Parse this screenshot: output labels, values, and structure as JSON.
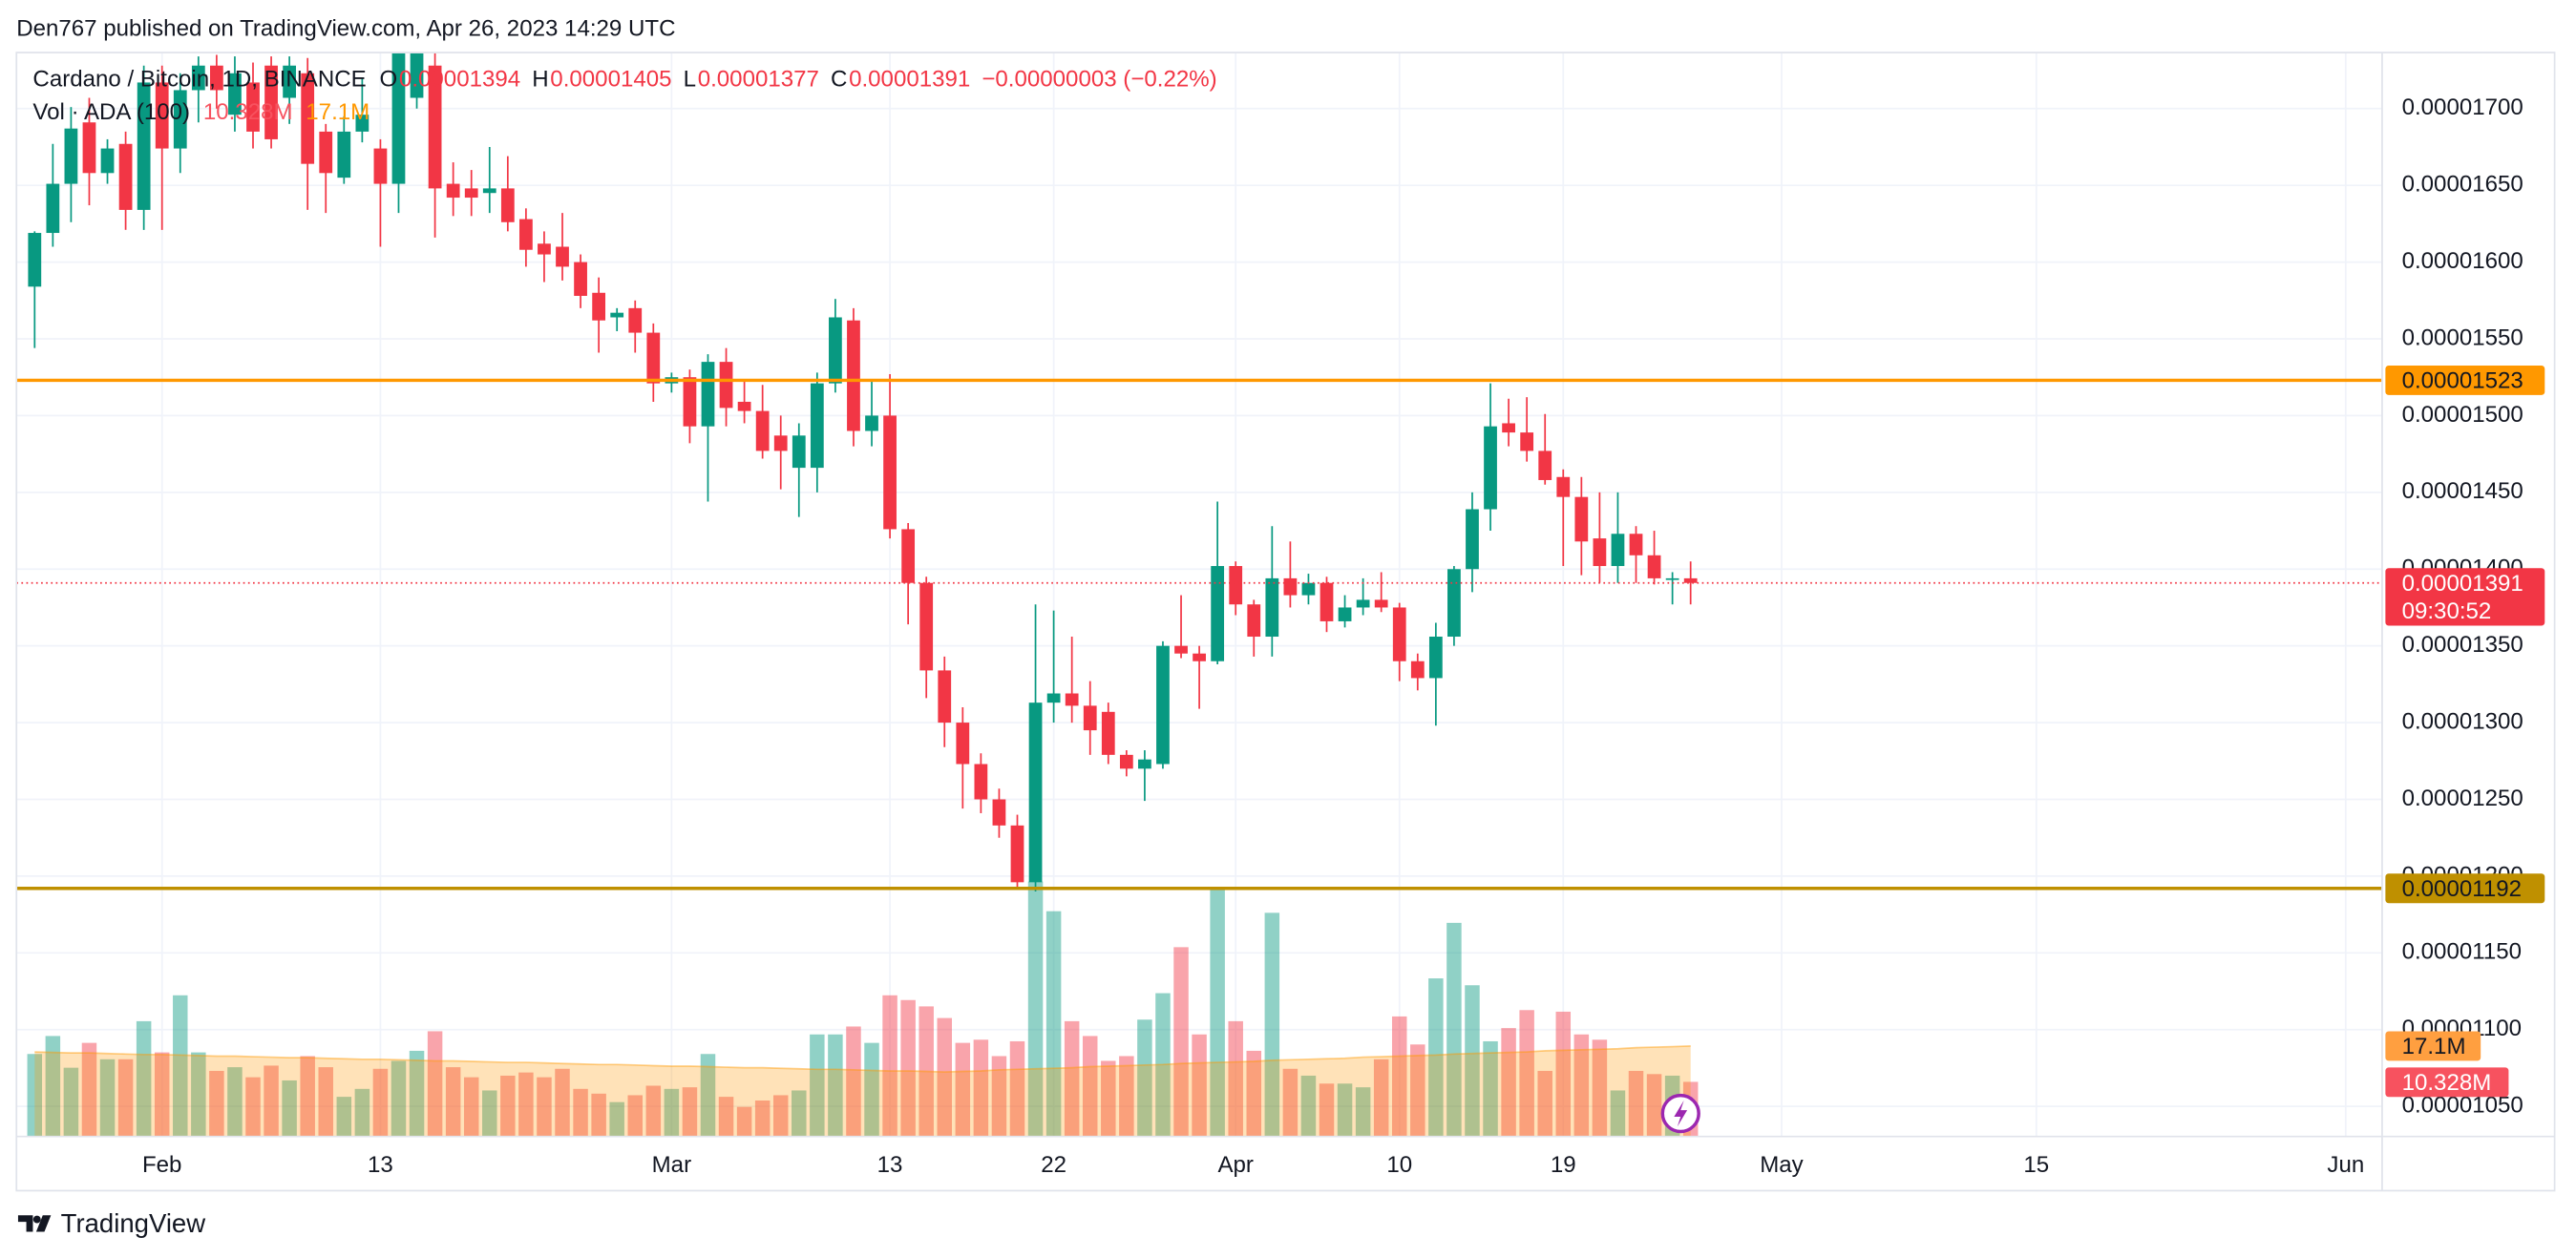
{
  "header": "Den767 published on TradingView.com, Apr 26, 2023 14:29 UTC",
  "footer": "TradingView",
  "chart_data": {
    "type": "candlestick",
    "title": "Cardano / Bitcoin, 1D, BINANCE",
    "ohlc_letters": [
      "O",
      "H",
      "L",
      "C"
    ],
    "change_label": "−0.00000003 (−0.22%)",
    "volume_title": "Vol · ADA (100)",
    "last_volume_label": "10.328M",
    "last_ma_label": "17.1M",
    "countdown": "09:30:52",
    "up_color": "#089981",
    "down_color": "#f23645",
    "grid": true,
    "x": [
      "01-25",
      "01-26",
      "01-27",
      "01-28",
      "01-29",
      "01-30",
      "01-31",
      "02-01",
      "02-02",
      "02-03",
      "02-04",
      "02-05",
      "02-06",
      "02-07",
      "02-08",
      "02-09",
      "02-10",
      "02-11",
      "02-12",
      "02-13",
      "02-14",
      "02-15",
      "02-16",
      "02-17",
      "02-18",
      "02-19",
      "02-20",
      "02-21",
      "02-22",
      "02-23",
      "02-24",
      "02-25",
      "02-26",
      "02-27",
      "02-28",
      "03-01",
      "03-02",
      "03-03",
      "03-04",
      "03-05",
      "03-06",
      "03-07",
      "03-08",
      "03-09",
      "03-10",
      "03-11",
      "03-12",
      "03-13",
      "03-14",
      "03-15",
      "03-16",
      "03-17",
      "03-18",
      "03-19",
      "03-20",
      "03-21",
      "03-22",
      "03-23",
      "03-24",
      "03-25",
      "03-26",
      "03-27",
      "03-28",
      "03-29",
      "03-30",
      "03-31",
      "04-01",
      "04-02",
      "04-03",
      "04-04",
      "04-05",
      "04-06",
      "04-07",
      "04-08",
      "04-09",
      "04-10",
      "04-11",
      "04-12",
      "04-13",
      "04-14",
      "04-15",
      "04-16",
      "04-17",
      "04-18",
      "04-19",
      "04-20",
      "04-21",
      "04-22",
      "04-23",
      "04-24",
      "04-25",
      "04-26"
    ],
    "open": [
      1.584e-05,
      1.619e-05,
      1.651e-05,
      1.691e-05,
      1.658e-05,
      1.677e-05,
      1.634e-05,
      1.717e-05,
      1.674e-05,
      1.712e-05,
      1.728e-05,
      1.696e-05,
      1.717e-05,
      1.728e-05,
      1.707e-05,
      1.723e-05,
      1.685e-05,
      1.655e-05,
      1.685e-05,
      1.674e-05,
      1.651e-05,
      1.707e-05,
      1.728e-05,
      1.651e-05,
      1.648e-05,
      1.645e-05,
      1.648e-05,
      1.628e-05,
      1.612e-05,
      1.61e-05,
      1.6e-05,
      1.58e-05,
      1.564e-05,
      1.57e-05,
      1.554e-05,
      1.521e-05,
      1.525e-05,
      1.493e-05,
      1.535e-05,
      1.509e-05,
      1.503e-05,
      1.487e-05,
      1.466e-05,
      1.466e-05,
      1.521e-05,
      1.562e-05,
      1.49e-05,
      1.5e-05,
      1.426e-05,
      1.391e-05,
      1.334e-05,
      1.3e-05,
      1.273e-05,
      1.25e-05,
      1.233e-05,
      1.196e-05,
      1.313e-05,
      1.319e-05,
      1.311e-05,
      1.307e-05,
      1.279e-05,
      1.27e-05,
      1.273e-05,
      1.35e-05,
      1.345e-05,
      1.34e-05,
      1.402e-05,
      1.377e-05,
      1.356e-05,
      1.394e-05,
      1.383e-05,
      1.391e-05,
      1.366e-05,
      1.375e-05,
      1.38e-05,
      1.375e-05,
      1.34e-05,
      1.329e-05,
      1.356e-05,
      1.4e-05,
      1.439e-05,
      1.495e-05,
      1.489e-05,
      1.477e-05,
      1.46e-05,
      1.447e-05,
      1.42e-05,
      1.402e-05,
      1.423e-05,
      1.409e-05,
      1.393e-05,
      1.394e-05
    ],
    "high": [
      1.62e-05,
      1.677e-05,
      1.701e-05,
      1.707e-05,
      1.68e-05,
      1.685e-05,
      1.728e-05,
      1.728e-05,
      1.723e-05,
      1.734e-05,
      1.735e-05,
      1.734e-05,
      1.73e-05,
      1.734e-05,
      1.734e-05,
      1.733e-05,
      1.69e-05,
      1.695e-05,
      1.72e-05,
      1.68e-05,
      1.736e-05,
      1.736e-05,
      1.736e-05,
      1.665e-05,
      1.66e-05,
      1.675e-05,
      1.669e-05,
      1.635e-05,
      1.62e-05,
      1.632e-05,
      1.605e-05,
      1.59e-05,
      1.57e-05,
      1.575e-05,
      1.56e-05,
      1.528e-05,
      1.53e-05,
      1.54e-05,
      1.544e-05,
      1.523e-05,
      1.52e-05,
      1.5e-05,
      1.495e-05,
      1.528e-05,
      1.576e-05,
      1.57e-05,
      1.523e-05,
      1.527e-05,
      1.43e-05,
      1.395e-05,
      1.343e-05,
      1.31e-05,
      1.28e-05,
      1.257e-05,
      1.24e-05,
      1.377e-05,
      1.373e-05,
      1.356e-05,
      1.327e-05,
      1.313e-05,
      1.282e-05,
      1.282e-05,
      1.353e-05,
      1.383e-05,
      1.35e-05,
      1.444e-05,
      1.405e-05,
      1.38e-05,
      1.428e-05,
      1.418e-05,
      1.397e-05,
      1.395e-05,
      1.383e-05,
      1.394e-05,
      1.398e-05,
      1.378e-05,
      1.345e-05,
      1.365e-05,
      1.402e-05,
      1.45e-05,
      1.521e-05,
      1.511e-05,
      1.512e-05,
      1.501e-05,
      1.465e-05,
      1.46e-05,
      1.45e-05,
      1.45e-05,
      1.428e-05,
      1.425e-05,
      1.398e-05,
      1.405e-05
    ],
    "low": [
      1.544e-05,
      1.61e-05,
      1.626e-05,
      1.637e-05,
      1.651e-05,
      1.621e-05,
      1.621e-05,
      1.621e-05,
      1.658e-05,
      1.691e-05,
      1.7e-05,
      1.685e-05,
      1.674e-05,
      1.674e-05,
      1.69e-05,
      1.634e-05,
      1.632e-05,
      1.651e-05,
      1.678e-05,
      1.61e-05,
      1.632e-05,
      1.7e-05,
      1.616e-05,
      1.63e-05,
      1.63e-05,
      1.632e-05,
      1.62e-05,
      1.597e-05,
      1.587e-05,
      1.588e-05,
      1.57e-05,
      1.541e-05,
      1.555e-05,
      1.541e-05,
      1.509e-05,
      1.515e-05,
      1.482e-05,
      1.444e-05,
      1.493e-05,
      1.495e-05,
      1.472e-05,
      1.452e-05,
      1.434e-05,
      1.45e-05,
      1.515e-05,
      1.48e-05,
      1.48e-05,
      1.42e-05,
      1.364e-05,
      1.316e-05,
      1.284e-05,
      1.244e-05,
      1.241e-05,
      1.225e-05,
      1.191e-05,
      1.19e-05,
      1.3e-05,
      1.3e-05,
      1.279e-05,
      1.273e-05,
      1.265e-05,
      1.249e-05,
      1.27e-05,
      1.342e-05,
      1.309e-05,
      1.338e-05,
      1.37e-05,
      1.343e-05,
      1.343e-05,
      1.375e-05,
      1.377e-05,
      1.359e-05,
      1.362e-05,
      1.37e-05,
      1.372e-05,
      1.327e-05,
      1.321e-05,
      1.298e-05,
      1.35e-05,
      1.385e-05,
      1.425e-05,
      1.48e-05,
      1.47e-05,
      1.455e-05,
      1.402e-05,
      1.396e-05,
      1.391e-05,
      1.391e-05,
      1.391e-05,
      1.39e-05,
      1.377e-05,
      1.377e-05
    ],
    "close": [
      1.619e-05,
      1.651e-05,
      1.687e-05,
      1.658e-05,
      1.674e-05,
      1.634e-05,
      1.717e-05,
      1.674e-05,
      1.712e-05,
      1.728e-05,
      1.712e-05,
      1.723e-05,
      1.685e-05,
      1.68e-05,
      1.728e-05,
      1.664e-05,
      1.658e-05,
      1.685e-05,
      1.696e-05,
      1.651e-05,
      1.736e-05,
      1.736e-05,
      1.648e-05,
      1.642e-05,
      1.642e-05,
      1.648e-05,
      1.626e-05,
      1.608e-05,
      1.605e-05,
      1.597e-05,
      1.578e-05,
      1.562e-05,
      1.567e-05,
      1.554e-05,
      1.521e-05,
      1.525e-05,
      1.493e-05,
      1.535e-05,
      1.505e-05,
      1.503e-05,
      1.477e-05,
      1.477e-05,
      1.487e-05,
      1.521e-05,
      1.564e-05,
      1.49e-05,
      1.5e-05,
      1.426e-05,
      1.391e-05,
      1.334e-05,
      1.3e-05,
      1.273e-05,
      1.25e-05,
      1.233e-05,
      1.196e-05,
      1.313e-05,
      1.319e-05,
      1.311e-05,
      1.295e-05,
      1.279e-05,
      1.27e-05,
      1.276e-05,
      1.35e-05,
      1.345e-05,
      1.34e-05,
      1.402e-05,
      1.377e-05,
      1.356e-05,
      1.394e-05,
      1.383e-05,
      1.391e-05,
      1.366e-05,
      1.375e-05,
      1.38e-05,
      1.375e-05,
      1.34e-05,
      1.329e-05,
      1.356e-05,
      1.4e-05,
      1.439e-05,
      1.493e-05,
      1.489e-05,
      1.477e-05,
      1.458e-05,
      1.447e-05,
      1.418e-05,
      1.402e-05,
      1.423e-05,
      1.409e-05,
      1.394e-05,
      1.394e-05,
      1.391e-05
    ],
    "volume": [
      15.6,
      19.0,
      13.0,
      17.7,
      14.6,
      14.6,
      21.8,
      15.9,
      26.7,
      15.9,
      12.4,
      13.1,
      11.2,
      13.4,
      10.6,
      15.2,
      13.1,
      7.5,
      9.0,
      12.8,
      14.3,
      16.2,
      19.9,
      13.1,
      11.2,
      8.7,
      11.5,
      12.1,
      11.2,
      12.8,
      9.0,
      8.1,
      6.5,
      7.8,
      9.6,
      9.0,
      9.3,
      15.6,
      7.5,
      5.6,
      6.8,
      7.8,
      8.7,
      19.3,
      19.3,
      20.8,
      17.7,
      26.7,
      25.8,
      24.6,
      22.4,
      17.7,
      18.3,
      15.2,
      18.0,
      48.2,
      42.6,
      21.8,
      19.0,
      14.3,
      15.2,
      22.1,
      27.1,
      35.8,
      19.3,
      46.7,
      21.8,
      16.2,
      42.3,
      12.8,
      11.5,
      10.0,
      10.0,
      9.3,
      14.6,
      22.7,
      17.4,
      29.9,
      40.4,
      28.6,
      18.0,
      20.5,
      23.9,
      12.4,
      23.6,
      19.3,
      18.3,
      8.7,
      12.4,
      11.8,
      11.5,
      10.328
    ],
    "volume_ma": [
      16.0,
      15.9,
      15.8,
      15.8,
      15.7,
      15.6,
      15.5,
      15.5,
      15.4,
      15.3,
      15.2,
      15.2,
      15.1,
      15.0,
      14.9,
      14.9,
      14.8,
      14.7,
      14.6,
      14.6,
      14.5,
      14.4,
      14.3,
      14.3,
      14.2,
      14.1,
      14.0,
      14.0,
      13.9,
      13.8,
      13.7,
      13.6,
      13.6,
      13.5,
      13.4,
      13.3,
      13.3,
      13.2,
      13.1,
      13.0,
      13.0,
      12.9,
      12.8,
      12.7,
      12.7,
      12.6,
      12.5,
      12.4,
      12.4,
      12.3,
      12.2,
      12.3,
      12.4,
      12.6,
      12.7,
      12.8,
      12.9,
      13.0,
      13.2,
      13.3,
      13.4,
      13.5,
      13.6,
      13.8,
      13.9,
      14.0,
      14.1,
      14.2,
      14.4,
      14.5,
      14.6,
      14.7,
      14.8,
      15.0,
      15.1,
      15.2,
      15.3,
      15.4,
      15.6,
      15.7,
      15.8,
      15.9,
      16.0,
      16.2,
      16.3,
      16.4,
      16.5,
      16.6,
      16.8,
      16.9,
      17.0,
      17.1
    ],
    "volume_ylim": [
      0,
      205
    ],
    "hlines": [
      {
        "value": 1.523e-05,
        "color": "#ff9800"
      },
      {
        "value": 1.192e-05,
        "color": "#bf9000"
      }
    ],
    "xlim": [
      "01-24",
      "06-03"
    ],
    "xticks": [
      {
        "value": "02-01",
        "label": "Feb"
      },
      {
        "value": "02-13",
        "label": "13"
      },
      {
        "value": "03-01",
        "label": "Mar"
      },
      {
        "value": "03-13",
        "label": "13"
      },
      {
        "value": "03-22",
        "label": "22"
      },
      {
        "value": "04-01",
        "label": "Apr"
      },
      {
        "value": "04-10",
        "label": "10"
      },
      {
        "value": "04-19",
        "label": "19"
      },
      {
        "value": "05-01",
        "label": "May"
      },
      {
        "value": "05-15",
        "label": "15"
      },
      {
        "value": "06-01",
        "label": "Jun"
      }
    ],
    "ylim": [
      1.0304e-05,
      1.7365e-05
    ],
    "yticks": [
      {
        "value": 1.05e-05,
        "label": "0.00001050"
      },
      {
        "value": 1.1e-05,
        "label": "0.00001100"
      },
      {
        "value": 1.15e-05,
        "label": "0.00001150"
      },
      {
        "value": 1.2e-05,
        "label": "0.00001200"
      },
      {
        "value": 1.25e-05,
        "label": "0.00001250"
      },
      {
        "value": 1.3e-05,
        "label": "0.00001300"
      },
      {
        "value": 1.35e-05,
        "label": "0.00001350"
      },
      {
        "value": 1.4e-05,
        "label": "0.00001400"
      },
      {
        "value": 1.45e-05,
        "label": "0.00001450"
      },
      {
        "value": 1.5e-05,
        "label": "0.00001500"
      },
      {
        "value": 1.55e-05,
        "label": "0.00001550"
      },
      {
        "value": 1.6e-05,
        "label": "0.00001600"
      },
      {
        "value": 1.65e-05,
        "label": "0.00001650"
      },
      {
        "value": 1.7e-05,
        "label": "0.00001700"
      }
    ]
  }
}
